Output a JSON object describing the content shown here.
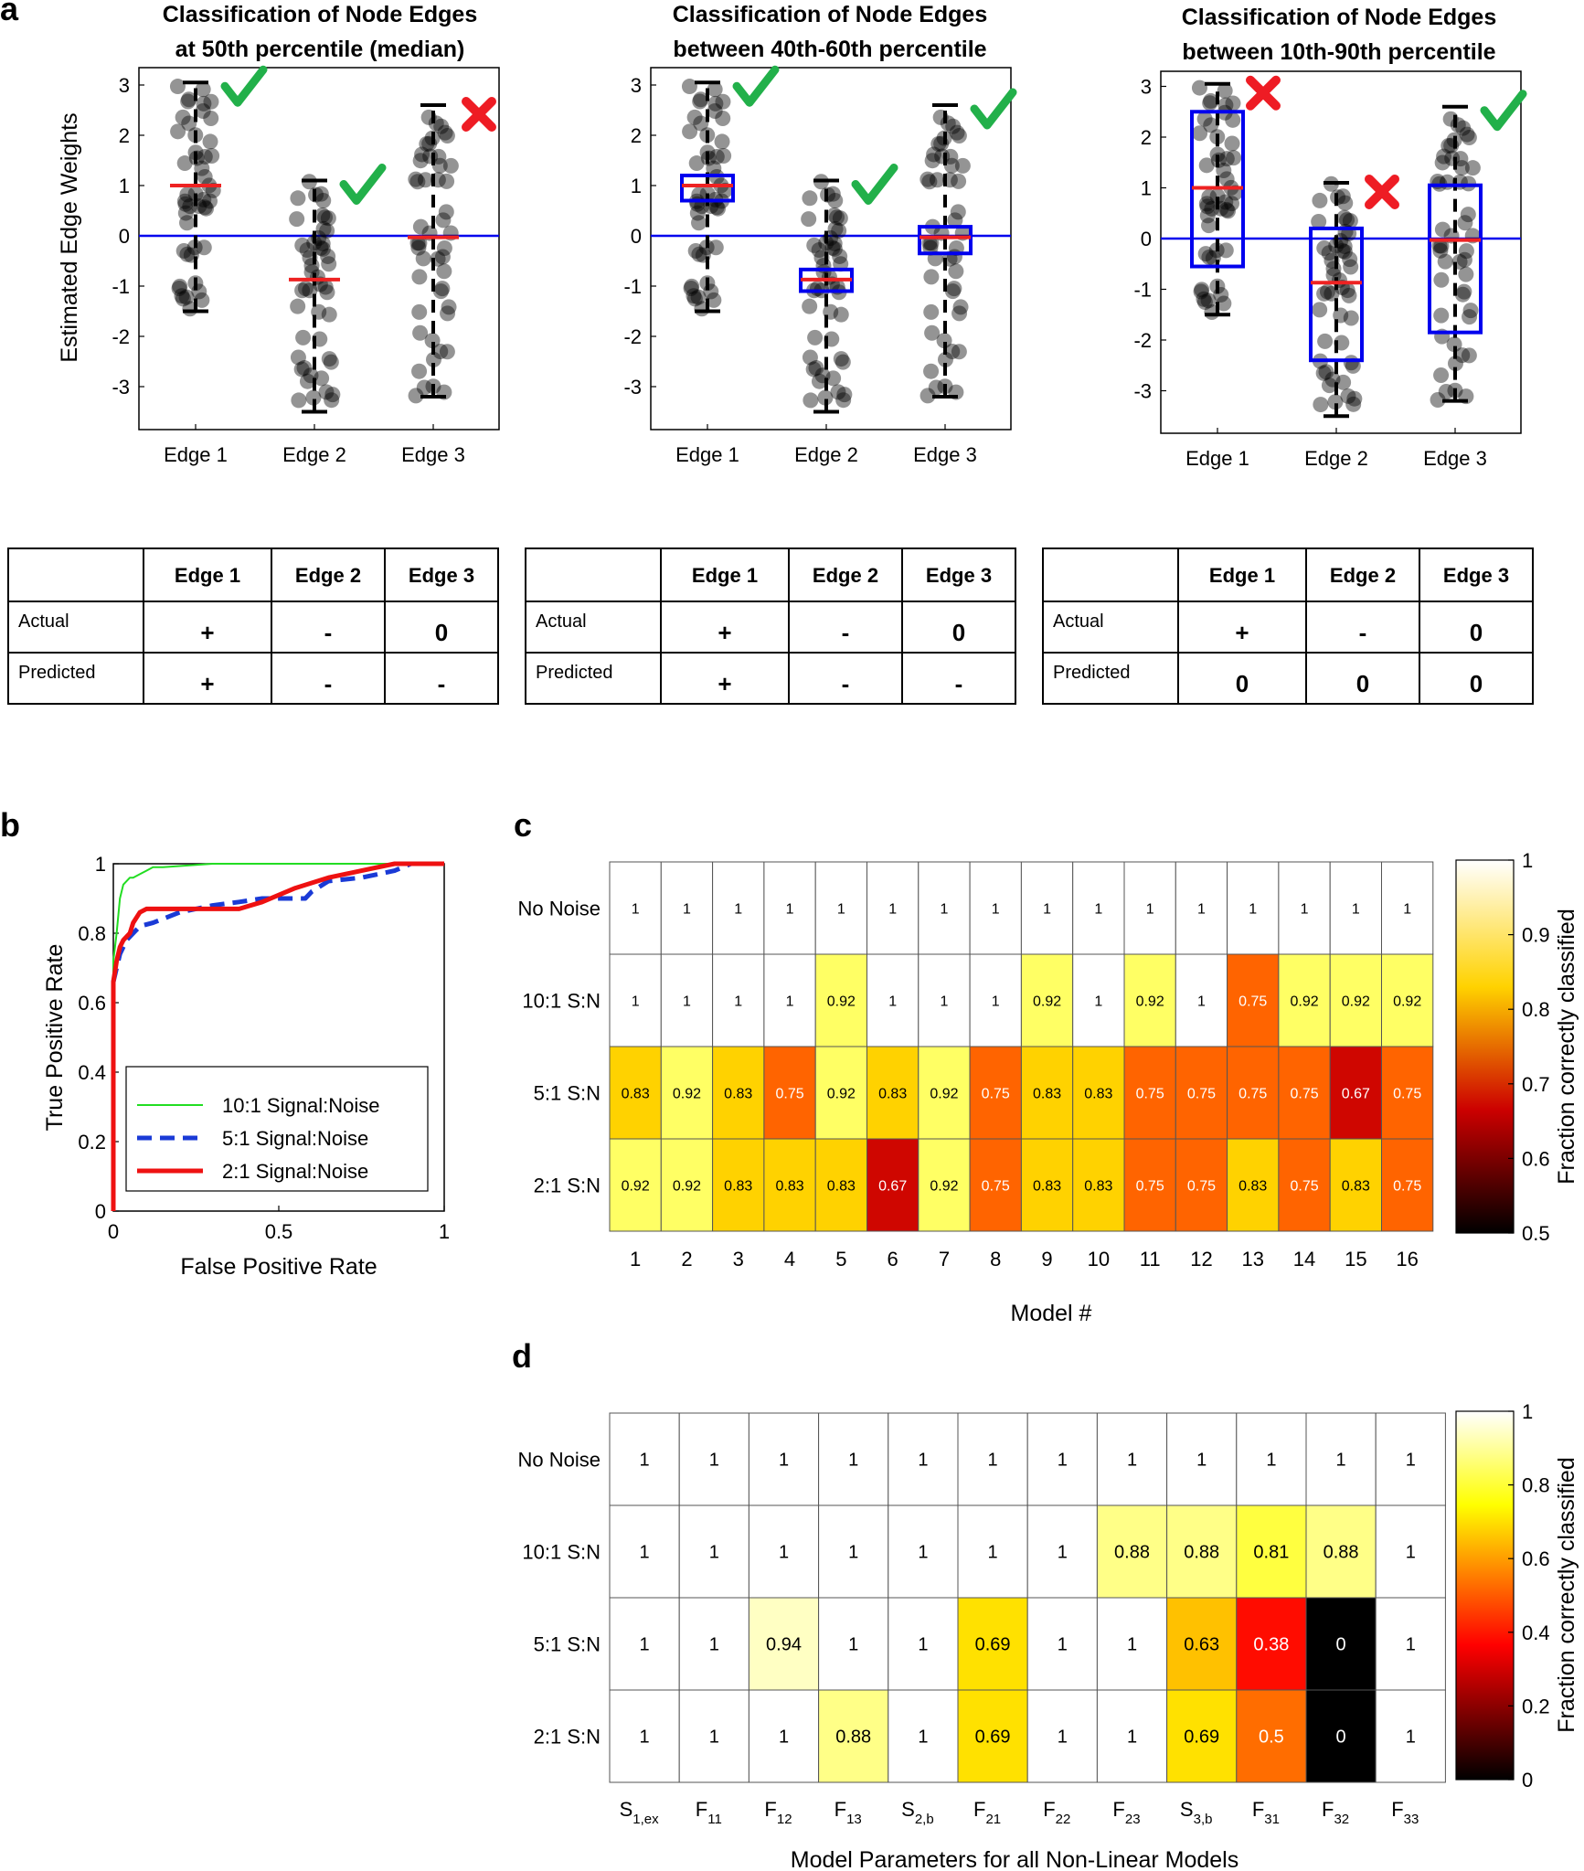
{
  "panel_labels": {
    "a": "a",
    "b": "b",
    "c": "c",
    "d": "d"
  },
  "colors": {
    "accent_blue": "#0000ee",
    "median_red": "#ee2222",
    "check_green": "#22b04a",
    "cross_red": "#ee1c24",
    "roc_green": "#22dd22",
    "roc_blue": "#1a3ad6",
    "roc_red": "#ee1111"
  },
  "panel_a": {
    "ylabel": "Estimated Edge Weights",
    "plots": [
      {
        "title": [
          "Classification of Node Edges",
          "at 50th percentile (median)"
        ],
        "box": "none",
        "marks": [
          "check",
          "check",
          "cross"
        ]
      },
      {
        "title": [
          "Classification of Node Edges",
          "between 40th-60th percentile"
        ],
        "box": "narrow",
        "marks": [
          "check",
          "check",
          "check"
        ]
      },
      {
        "title": [
          "Classification of Node Edges",
          "between 10th-90th percentile"
        ],
        "box": "wide",
        "marks": [
          "cross",
          "cross",
          "check"
        ]
      }
    ],
    "chart_data": {
      "type": "scatter",
      "categories": [
        "Edge 1",
        "Edge 2",
        "Edge 3"
      ],
      "medians": [
        1.0,
        -0.87,
        -0.03
      ],
      "whisker_low": [
        -1.5,
        -3.5,
        -3.2
      ],
      "whisker_high": [
        3.05,
        1.1,
        2.6
      ],
      "box_40_60": [
        [
          0.7,
          1.2
        ],
        [
          -1.1,
          -0.67
        ],
        [
          -0.35,
          0.18
        ]
      ],
      "box_10_90": [
        [
          -0.55,
          2.5
        ],
        [
          -2.4,
          0.2
        ],
        [
          -1.85,
          1.05
        ]
      ],
      "ylim": [
        -3.7,
        3.4
      ],
      "yticks": [
        -3,
        -2,
        -1,
        0,
        1,
        2,
        3
      ],
      "zero_line": 0
    }
  },
  "tables": [
    {
      "headers": [
        "",
        "Edge 1",
        "Edge 2",
        "Edge 3"
      ],
      "rows": [
        [
          "Actual",
          "+",
          "-",
          "0"
        ],
        [
          "Predicted",
          "+",
          "-",
          "-"
        ]
      ]
    },
    {
      "headers": [
        "",
        "Edge 1",
        "Edge 2",
        "Edge 3"
      ],
      "rows": [
        [
          "Actual",
          "+",
          "-",
          "0"
        ],
        [
          "Predicted",
          "+",
          "-",
          "-"
        ]
      ]
    },
    {
      "headers": [
        "",
        "Edge 1",
        "Edge 2",
        "Edge 3"
      ],
      "rows": [
        [
          "Actual",
          "+",
          "-",
          "0"
        ],
        [
          "Predicted",
          "0",
          "0",
          "0"
        ]
      ]
    }
  ],
  "panel_b": {
    "chart_data": {
      "type": "line",
      "xlabel": "False Positive Rate",
      "ylabel": "True Positive Rate",
      "xlim": [
        0,
        1
      ],
      "ylim": [
        0,
        1
      ],
      "xticks": [
        "0",
        "0.5",
        "1"
      ],
      "yticks": [
        "0",
        "0.2",
        "0.4",
        "0.6",
        "0.8",
        "1"
      ],
      "series": [
        {
          "name": "10:1 Signal:Noise",
          "color": "#22dd22",
          "style": "solid",
          "x": [
            0,
            0,
            0.01,
            0.02,
            0.03,
            0.05,
            0.06,
            0.08,
            0.1,
            0.12,
            0.15,
            0.3,
            0.6,
            0.8,
            1.0
          ],
          "y": [
            0,
            0.72,
            0.8,
            0.9,
            0.94,
            0.96,
            0.96,
            0.97,
            0.98,
            0.99,
            0.99,
            1.0,
            1.0,
            1.0,
            1.0
          ]
        },
        {
          "name": "5:1 Signal:Noise",
          "color": "#1a3ad6",
          "style": "dashed",
          "x": [
            0,
            0,
            0.01,
            0.02,
            0.04,
            0.06,
            0.08,
            0.12,
            0.2,
            0.3,
            0.38,
            0.45,
            0.5,
            0.55,
            0.58,
            0.6,
            0.65,
            0.75,
            0.85,
            0.9,
            1.0
          ],
          "y": [
            0,
            0.66,
            0.7,
            0.74,
            0.78,
            0.8,
            0.82,
            0.83,
            0.86,
            0.88,
            0.89,
            0.9,
            0.9,
            0.9,
            0.9,
            0.92,
            0.95,
            0.96,
            0.98,
            1.0,
            1.0
          ]
        },
        {
          "name": "2:1 Signal:Noise",
          "color": "#ee1111",
          "style": "solid",
          "x": [
            0,
            0,
            0.01,
            0.02,
            0.03,
            0.05,
            0.06,
            0.08,
            0.1,
            0.12,
            0.2,
            0.3,
            0.38,
            0.45,
            0.55,
            0.65,
            0.75,
            0.85,
            0.88,
            1.0
          ],
          "y": [
            0,
            0.66,
            0.72,
            0.76,
            0.78,
            0.8,
            0.83,
            0.86,
            0.87,
            0.87,
            0.87,
            0.87,
            0.87,
            0.89,
            0.93,
            0.96,
            0.98,
            1.0,
            1.0,
            1.0
          ]
        }
      ]
    }
  },
  "panel_c": {
    "chart_data": {
      "type": "heatmap",
      "xlabel": "Model #",
      "colorbar_label": "Fraction correctly classified",
      "colorbar_range": [
        0.5,
        1
      ],
      "colorbar_ticks": [
        "0.5",
        "0.6",
        "0.7",
        "0.8",
        "0.9",
        "1"
      ],
      "rows": [
        "No Noise",
        "10:1 S:N",
        "5:1 S:N",
        "2:1 S:N"
      ],
      "columns": [
        "1",
        "2",
        "3",
        "4",
        "5",
        "6",
        "7",
        "8",
        "9",
        "10",
        "11",
        "12",
        "13",
        "14",
        "15",
        "16"
      ],
      "values": [
        [
          1,
          1,
          1,
          1,
          1,
          1,
          1,
          1,
          1,
          1,
          1,
          1,
          1,
          1,
          1,
          1
        ],
        [
          1,
          1,
          1,
          1,
          0.92,
          1,
          1,
          1,
          0.92,
          1,
          0.92,
          1,
          0.75,
          0.92,
          0.92,
          0.92
        ],
        [
          0.83,
          0.92,
          0.83,
          0.75,
          0.92,
          0.83,
          0.92,
          0.75,
          0.83,
          0.83,
          0.75,
          0.75,
          0.75,
          0.75,
          0.67,
          0.75
        ],
        [
          0.92,
          0.92,
          0.83,
          0.83,
          0.83,
          0.67,
          0.92,
          0.75,
          0.83,
          0.83,
          0.75,
          0.75,
          0.83,
          0.75,
          0.83,
          0.75
        ]
      ]
    }
  },
  "panel_d": {
    "chart_data": {
      "type": "heatmap",
      "xlabel": "Model Parameters for all Non-Linear Models",
      "colorbar_label": "Fraction correctly classified",
      "colorbar_range": [
        0,
        1
      ],
      "colorbar_ticks": [
        "0",
        "0.2",
        "0.4",
        "0.6",
        "0.8",
        "1"
      ],
      "rows": [
        "No Noise",
        "10:1 S:N",
        "5:1 S:N",
        "2:1 S:N"
      ],
      "columns": [
        {
          "base": "S",
          "sub": "1,ex"
        },
        {
          "base": "F",
          "sub": "11"
        },
        {
          "base": "F",
          "sub": "12"
        },
        {
          "base": "F",
          "sub": "13"
        },
        {
          "base": "S",
          "sub": "2,b"
        },
        {
          "base": "F",
          "sub": "21"
        },
        {
          "base": "F",
          "sub": "22"
        },
        {
          "base": "F",
          "sub": "23"
        },
        {
          "base": "S",
          "sub": "3,b"
        },
        {
          "base": "F",
          "sub": "31"
        },
        {
          "base": "F",
          "sub": "32"
        },
        {
          "base": "F",
          "sub": "33"
        }
      ],
      "values": [
        [
          1,
          1,
          1,
          1,
          1,
          1,
          1,
          1,
          1,
          1,
          1,
          1
        ],
        [
          1,
          1,
          1,
          1,
          1,
          1,
          1,
          0.88,
          0.88,
          0.81,
          0.88,
          1
        ],
        [
          1,
          1,
          0.94,
          1,
          1,
          0.69,
          1,
          1,
          0.63,
          0.38,
          0,
          1
        ],
        [
          1,
          1,
          1,
          0.88,
          1,
          0.69,
          1,
          1,
          0.69,
          0.5,
          0,
          1
        ]
      ]
    }
  }
}
